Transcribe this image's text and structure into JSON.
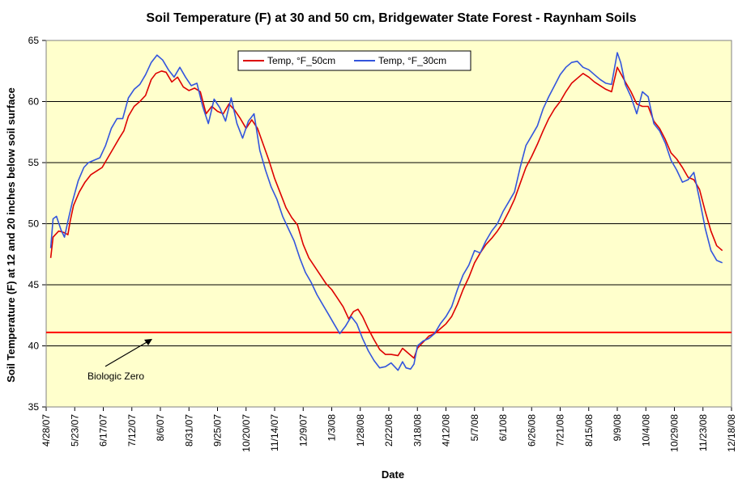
{
  "chart_data": {
    "type": "line",
    "title": "Soil Temperature (F) at 30 and 50 cm, Bridgewater State Forest - Raynham Soils",
    "xlabel": "Date",
    "ylabel": "Soil Temperature (F) at 12 and 20 inches below soil surface",
    "ylim": [
      35,
      65
    ],
    "yticks": [
      35,
      40,
      45,
      50,
      55,
      60,
      65
    ],
    "xlim": [
      "4/28/07",
      "12/18/08"
    ],
    "xticks": [
      "4/28/07",
      "5/23/07",
      "6/17/07",
      "7/12/07",
      "8/6/07",
      "8/31/07",
      "9/25/07",
      "10/20/07",
      "11/14/07",
      "12/9/07",
      "1/3/08",
      "1/28/08",
      "2/22/08",
      "3/18/08",
      "4/12/08",
      "5/7/08",
      "6/1/08",
      "6/26/08",
      "7/21/08",
      "8/15/08",
      "9/9/08",
      "10/4/08",
      "10/29/08",
      "11/23/08",
      "12/18/08"
    ],
    "grid": "horizontal",
    "legend_position": "top-left",
    "plot_background": "#ffffcc",
    "series": [
      {
        "name": "Temp, °F_50cm",
        "color": "#dd0000",
        "points": [
          [
            "5/2/07",
            47.2
          ],
          [
            "5/4/07",
            48.9
          ],
          [
            "5/9/07",
            49.4
          ],
          [
            "5/13/07",
            49.3
          ],
          [
            "5/17/07",
            49.1
          ],
          [
            "5/19/07",
            50.2
          ],
          [
            "5/22/07",
            51.5
          ],
          [
            "5/27/07",
            52.6
          ],
          [
            "6/1/07",
            53.4
          ],
          [
            "6/6/07",
            54.0
          ],
          [
            "6/11/07",
            54.3
          ],
          [
            "6/16/07",
            54.6
          ],
          [
            "6/21/07",
            55.4
          ],
          [
            "6/26/07",
            56.2
          ],
          [
            "7/1/07",
            57.0
          ],
          [
            "7/5/07",
            57.6
          ],
          [
            "7/9/07",
            58.8
          ],
          [
            "7/14/07",
            59.6
          ],
          [
            "7/19/07",
            60.0
          ],
          [
            "7/24/07",
            60.5
          ],
          [
            "7/29/07",
            61.8
          ],
          [
            "8/2/07",
            62.3
          ],
          [
            "8/7/07",
            62.5
          ],
          [
            "8/11/07",
            62.4
          ],
          [
            "8/16/07",
            61.6
          ],
          [
            "8/21/07",
            62.0
          ],
          [
            "8/26/07",
            61.2
          ],
          [
            "8/31/07",
            60.9
          ],
          [
            "9/5/07",
            61.1
          ],
          [
            "9/10/07",
            60.8
          ],
          [
            "9/15/07",
            59.0
          ],
          [
            "9/20/07",
            59.6
          ],
          [
            "9/25/07",
            59.2
          ],
          [
            "9/30/07",
            59.0
          ],
          [
            "10/5/07",
            59.8
          ],
          [
            "10/10/07",
            59.3
          ],
          [
            "10/15/07",
            58.6
          ],
          [
            "10/20/07",
            57.8
          ],
          [
            "10/25/07",
            58.5
          ],
          [
            "10/30/07",
            57.8
          ],
          [
            "11/4/07",
            56.5
          ],
          [
            "11/9/07",
            55.2
          ],
          [
            "11/14/07",
            53.7
          ],
          [
            "11/19/07",
            52.5
          ],
          [
            "11/24/07",
            51.3
          ],
          [
            "11/29/07",
            50.5
          ],
          [
            "12/4/07",
            49.9
          ],
          [
            "12/9/07",
            48.3
          ],
          [
            "12/14/07",
            47.2
          ],
          [
            "12/19/07",
            46.5
          ],
          [
            "12/24/07",
            45.8
          ],
          [
            "12/29/07",
            45.1
          ],
          [
            "1/3/08",
            44.6
          ],
          [
            "1/8/08",
            43.9
          ],
          [
            "1/13/08",
            43.2
          ],
          [
            "1/18/08",
            42.2
          ],
          [
            "1/22/08",
            42.8
          ],
          [
            "1/26/08",
            43.0
          ],
          [
            "1/30/08",
            42.4
          ],
          [
            "2/4/08",
            41.4
          ],
          [
            "2/9/08",
            40.5
          ],
          [
            "2/14/08",
            39.7
          ],
          [
            "2/19/08",
            39.3
          ],
          [
            "2/24/08",
            39.3
          ],
          [
            "3/1/08",
            39.2
          ],
          [
            "3/5/08",
            39.8
          ],
          [
            "3/10/08",
            39.4
          ],
          [
            "3/15/08",
            39.0
          ],
          [
            "3/18/08",
            39.8
          ],
          [
            "3/23/08",
            40.3
          ],
          [
            "3/28/08",
            40.8
          ],
          [
            "4/2/08",
            41.0
          ],
          [
            "4/7/08",
            41.4
          ],
          [
            "4/12/08",
            41.8
          ],
          [
            "4/17/08",
            42.4
          ],
          [
            "4/22/08",
            43.4
          ],
          [
            "4/27/08",
            44.6
          ],
          [
            "5/2/08",
            45.6
          ],
          [
            "5/7/08",
            46.8
          ],
          [
            "5/12/08",
            47.6
          ],
          [
            "5/17/08",
            48.3
          ],
          [
            "5/22/08",
            48.8
          ],
          [
            "5/27/08",
            49.4
          ],
          [
            "6/1/08",
            50.1
          ],
          [
            "6/6/08",
            51.0
          ],
          [
            "6/11/08",
            52.0
          ],
          [
            "6/16/08",
            53.3
          ],
          [
            "6/21/08",
            54.6
          ],
          [
            "6/26/08",
            55.5
          ],
          [
            "7/1/08",
            56.5
          ],
          [
            "7/6/08",
            57.6
          ],
          [
            "7/11/08",
            58.6
          ],
          [
            "7/16/08",
            59.4
          ],
          [
            "7/21/08",
            60.0
          ],
          [
            "7/26/08",
            60.8
          ],
          [
            "7/31/08",
            61.5
          ],
          [
            "8/5/08",
            61.9
          ],
          [
            "8/10/08",
            62.3
          ],
          [
            "8/15/08",
            62.0
          ],
          [
            "8/20/08",
            61.6
          ],
          [
            "8/25/08",
            61.3
          ],
          [
            "8/30/08",
            61.0
          ],
          [
            "9/4/08",
            60.8
          ],
          [
            "9/9/08",
            62.8
          ],
          [
            "9/12/08",
            62.3
          ],
          [
            "9/16/08",
            61.6
          ],
          [
            "9/21/08",
            60.8
          ],
          [
            "9/26/08",
            59.8
          ],
          [
            "10/1/08",
            59.6
          ],
          [
            "10/6/08",
            59.6
          ],
          [
            "10/11/08",
            58.4
          ],
          [
            "10/16/08",
            57.8
          ],
          [
            "10/21/08",
            56.9
          ],
          [
            "10/26/08",
            55.8
          ],
          [
            "10/31/08",
            55.3
          ],
          [
            "11/5/08",
            54.6
          ],
          [
            "11/10/08",
            53.8
          ],
          [
            "11/15/08",
            53.6
          ],
          [
            "11/20/08",
            52.8
          ],
          [
            "11/25/08",
            51.0
          ],
          [
            "11/30/08",
            49.4
          ],
          [
            "12/5/08",
            48.2
          ],
          [
            "12/10/08",
            47.8
          ]
        ]
      },
      {
        "name": "Temp, °F_30cm",
        "color": "#3355dd",
        "points": [
          [
            "5/2/07",
            48.0
          ],
          [
            "5/4/07",
            50.4
          ],
          [
            "5/7/07",
            50.6
          ],
          [
            "5/11/07",
            49.5
          ],
          [
            "5/14/07",
            48.9
          ],
          [
            "5/17/07",
            50.2
          ],
          [
            "5/21/07",
            51.8
          ],
          [
            "5/26/07",
            53.5
          ],
          [
            "5/31/07",
            54.6
          ],
          [
            "6/4/07",
            55.0
          ],
          [
            "6/9/07",
            55.2
          ],
          [
            "6/14/07",
            55.4
          ],
          [
            "6/19/07",
            56.4
          ],
          [
            "6/24/07",
            57.8
          ],
          [
            "6/29/07",
            58.6
          ],
          [
            "7/4/07",
            58.6
          ],
          [
            "7/9/07",
            60.3
          ],
          [
            "7/14/07",
            61.0
          ],
          [
            "7/19/07",
            61.4
          ],
          [
            "7/24/07",
            62.2
          ],
          [
            "7/29/07",
            63.2
          ],
          [
            "8/3/07",
            63.8
          ],
          [
            "8/8/07",
            63.4
          ],
          [
            "8/13/07",
            62.6
          ],
          [
            "8/18/07",
            62.0
          ],
          [
            "8/23/07",
            62.8
          ],
          [
            "8/28/07",
            62.0
          ],
          [
            "9/2/07",
            61.3
          ],
          [
            "9/7/07",
            61.5
          ],
          [
            "9/12/07",
            59.6
          ],
          [
            "9/17/07",
            58.2
          ],
          [
            "9/22/07",
            60.2
          ],
          [
            "9/27/07",
            59.5
          ],
          [
            "10/2/07",
            58.4
          ],
          [
            "10/7/07",
            60.3
          ],
          [
            "10/12/07",
            58.2
          ],
          [
            "10/17/07",
            57.0
          ],
          [
            "10/22/07",
            58.4
          ],
          [
            "10/27/07",
            59.0
          ],
          [
            "11/1/07",
            56.0
          ],
          [
            "11/6/07",
            54.4
          ],
          [
            "11/11/07",
            53.0
          ],
          [
            "11/16/07",
            52.0
          ],
          [
            "11/21/07",
            50.6
          ],
          [
            "11/26/07",
            49.6
          ],
          [
            "12/1/07",
            48.6
          ],
          [
            "12/6/07",
            47.2
          ],
          [
            "12/11/07",
            46.0
          ],
          [
            "12/16/07",
            45.2
          ],
          [
            "12/21/07",
            44.2
          ],
          [
            "12/26/07",
            43.4
          ],
          [
            "12/31/07",
            42.6
          ],
          [
            "1/5/08",
            41.8
          ],
          [
            "1/10/08",
            41.0
          ],
          [
            "1/15/08",
            41.6
          ],
          [
            "1/20/08",
            42.4
          ],
          [
            "1/25/08",
            41.8
          ],
          [
            "1/30/08",
            40.6
          ],
          [
            "2/4/08",
            39.6
          ],
          [
            "2/9/08",
            38.8
          ],
          [
            "2/14/08",
            38.2
          ],
          [
            "2/19/08",
            38.3
          ],
          [
            "2/24/08",
            38.6
          ],
          [
            "3/1/08",
            38.0
          ],
          [
            "3/5/08",
            38.7
          ],
          [
            "3/8/08",
            38.2
          ],
          [
            "3/12/08",
            38.1
          ],
          [
            "3/15/08",
            38.5
          ],
          [
            "3/18/08",
            40.0
          ],
          [
            "3/23/08",
            40.4
          ],
          [
            "3/28/08",
            40.6
          ],
          [
            "4/2/08",
            41.0
          ],
          [
            "4/7/08",
            41.8
          ],
          [
            "4/12/08",
            42.4
          ],
          [
            "4/17/08",
            43.2
          ],
          [
            "4/22/08",
            44.6
          ],
          [
            "4/27/08",
            45.8
          ],
          [
            "5/2/08",
            46.6
          ],
          [
            "5/7/08",
            47.8
          ],
          [
            "5/12/08",
            47.6
          ],
          [
            "5/17/08",
            48.6
          ],
          [
            "5/22/08",
            49.4
          ],
          [
            "5/27/08",
            50.0
          ],
          [
            "6/1/08",
            51.0
          ],
          [
            "6/6/08",
            51.8
          ],
          [
            "6/11/08",
            52.6
          ],
          [
            "6/16/08",
            54.6
          ],
          [
            "6/21/08",
            56.4
          ],
          [
            "6/26/08",
            57.2
          ],
          [
            "7/1/08",
            58.0
          ],
          [
            "7/6/08",
            59.4
          ],
          [
            "7/11/08",
            60.4
          ],
          [
            "7/16/08",
            61.3
          ],
          [
            "7/21/08",
            62.2
          ],
          [
            "7/26/08",
            62.8
          ],
          [
            "7/31/08",
            63.2
          ],
          [
            "8/5/08",
            63.3
          ],
          [
            "8/10/08",
            62.8
          ],
          [
            "8/15/08",
            62.6
          ],
          [
            "8/20/08",
            62.2
          ],
          [
            "8/25/08",
            61.8
          ],
          [
            "8/30/08",
            61.5
          ],
          [
            "9/4/08",
            61.4
          ],
          [
            "9/9/08",
            64.0
          ],
          [
            "9/12/08",
            63.2
          ],
          [
            "9/16/08",
            61.4
          ],
          [
            "9/21/08",
            60.4
          ],
          [
            "9/26/08",
            59.0
          ],
          [
            "10/1/08",
            60.8
          ],
          [
            "10/6/08",
            60.4
          ],
          [
            "10/11/08",
            58.2
          ],
          [
            "10/16/08",
            57.6
          ],
          [
            "10/21/08",
            56.6
          ],
          [
            "10/26/08",
            55.2
          ],
          [
            "10/31/08",
            54.4
          ],
          [
            "11/5/08",
            53.4
          ],
          [
            "11/10/08",
            53.6
          ],
          [
            "11/15/08",
            54.2
          ],
          [
            "11/20/08",
            52.0
          ],
          [
            "11/25/08",
            49.6
          ],
          [
            "11/30/08",
            47.8
          ],
          [
            "12/5/08",
            47.0
          ],
          [
            "12/10/08",
            46.8
          ]
        ]
      }
    ],
    "reference_line": {
      "label": "Biologic Zero",
      "value": 41.1,
      "color": "#ff0000"
    }
  }
}
